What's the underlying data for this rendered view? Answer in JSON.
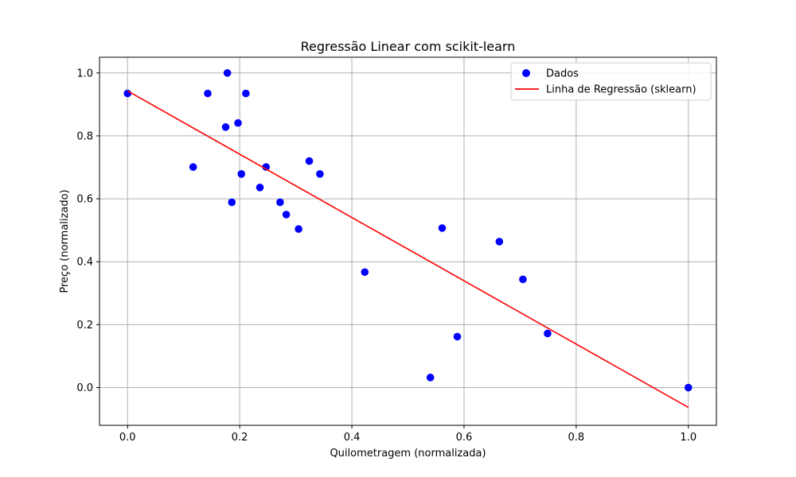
{
  "chart_data": {
    "type": "scatter",
    "title": "Regressão Linear com scikit-learn",
    "xlabel": "Quilometragem (normalizada)",
    "ylabel": "Preço (normalizado)",
    "xlim": [
      -0.05,
      1.05
    ],
    "ylim": [
      -0.12,
      1.05
    ],
    "xticks": [
      0.0,
      0.2,
      0.4,
      0.6,
      0.8,
      1.0
    ],
    "yticks": [
      0.0,
      0.2,
      0.4,
      0.6,
      0.8,
      1.0
    ],
    "xtick_labels": [
      "0.0",
      "0.2",
      "0.4",
      "0.6",
      "0.8",
      "1.0"
    ],
    "ytick_labels": [
      "0.0",
      "0.2",
      "0.4",
      "0.6",
      "0.8",
      "1.0"
    ],
    "grid": true,
    "legend_position": "top-right",
    "series": [
      {
        "name": "Dados",
        "kind": "scatter",
        "color": "#0000ff",
        "points": [
          {
            "x": 0.0,
            "y": 0.935
          },
          {
            "x": 0.117,
            "y": 0.701
          },
          {
            "x": 0.143,
            "y": 0.935
          },
          {
            "x": 0.175,
            "y": 0.828
          },
          {
            "x": 0.178,
            "y": 1.0
          },
          {
            "x": 0.186,
            "y": 0.589
          },
          {
            "x": 0.197,
            "y": 0.841
          },
          {
            "x": 0.203,
            "y": 0.679
          },
          {
            "x": 0.211,
            "y": 0.935
          },
          {
            "x": 0.236,
            "y": 0.636
          },
          {
            "x": 0.247,
            "y": 0.701
          },
          {
            "x": 0.272,
            "y": 0.589
          },
          {
            "x": 0.283,
            "y": 0.55
          },
          {
            "x": 0.305,
            "y": 0.504
          },
          {
            "x": 0.324,
            "y": 0.72
          },
          {
            "x": 0.343,
            "y": 0.679
          },
          {
            "x": 0.423,
            "y": 0.367
          },
          {
            "x": 0.54,
            "y": 0.032
          },
          {
            "x": 0.561,
            "y": 0.507
          },
          {
            "x": 0.588,
            "y": 0.162
          },
          {
            "x": 0.663,
            "y": 0.464
          },
          {
            "x": 0.705,
            "y": 0.344
          },
          {
            "x": 0.749,
            "y": 0.172
          },
          {
            "x": 1.0,
            "y": 0.0
          }
        ]
      },
      {
        "name": "Linha de Regressão (sklearn)",
        "kind": "line",
        "color": "#ff0000",
        "points": [
          {
            "x": 0.0,
            "y": 0.943
          },
          {
            "x": 1.0,
            "y": -0.063
          }
        ]
      }
    ]
  }
}
